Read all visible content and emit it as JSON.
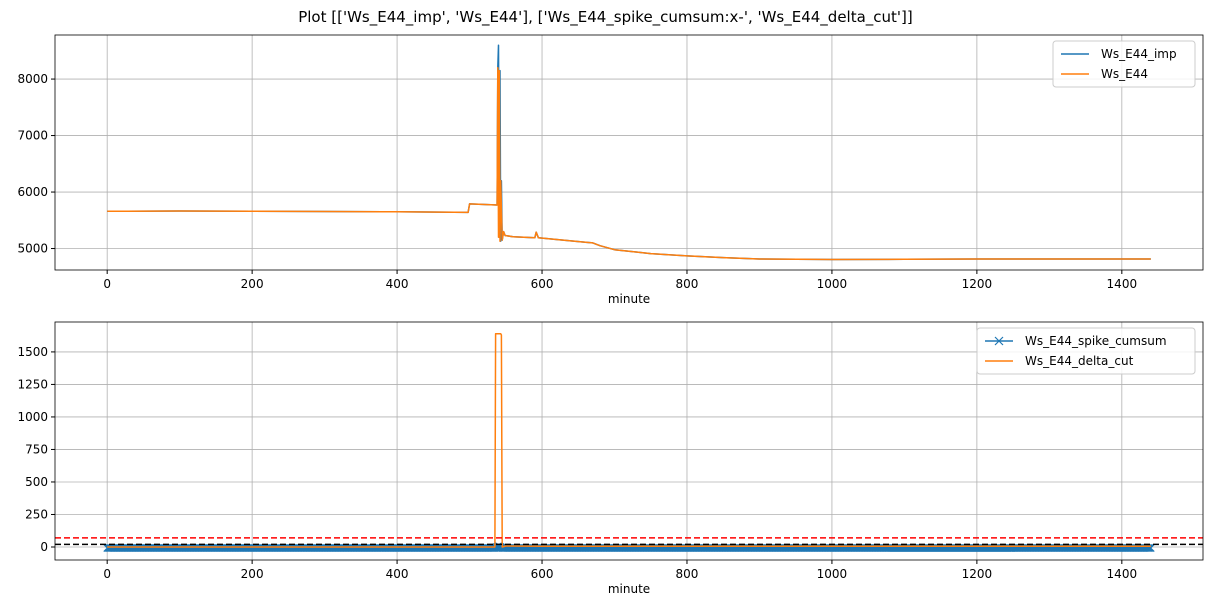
{
  "title": "Plot [['Ws_E44_imp', 'Ws_E44'], ['Ws_E44_spike_cumsum:x-', 'Ws_E44_delta_cut']]",
  "chart_data": [
    {
      "type": "line",
      "xlabel": "minute",
      "xlim": [
        -72,
        1512
      ],
      "ylim": [
        4620,
        8780
      ],
      "xticks": [
        0,
        200,
        400,
        600,
        800,
        1000,
        1200,
        1400
      ],
      "yticks": [
        5000,
        6000,
        7000,
        8000
      ],
      "grid": true,
      "legend": "top-right",
      "series": [
        {
          "name": "Ws_E44_imp",
          "color": "#1f77b4",
          "points": [
            [
              0,
              5660
            ],
            [
              100,
              5665
            ],
            [
              200,
              5660
            ],
            [
              300,
              5655
            ],
            [
              400,
              5650
            ],
            [
              498,
              5640
            ],
            [
              500,
              5790
            ],
            [
              538,
              5770
            ],
            [
              539,
              8200
            ],
            [
              540,
              8600
            ],
            [
              541,
              5200
            ],
            [
              542,
              8150
            ],
            [
              543,
              5130
            ],
            [
              544,
              6200
            ],
            [
              545,
              5150
            ],
            [
              547,
              5300
            ],
            [
              549,
              5230
            ],
            [
              560,
              5210
            ],
            [
              590,
              5190
            ],
            [
              592,
              5290
            ],
            [
              595,
              5190
            ],
            [
              620,
              5160
            ],
            [
              660,
              5110
            ],
            [
              670,
              5100
            ],
            [
              680,
              5050
            ],
            [
              700,
              4980
            ],
            [
              750,
              4910
            ],
            [
              800,
              4870
            ],
            [
              850,
              4840
            ],
            [
              900,
              4815
            ],
            [
              1000,
              4805
            ],
            [
              1100,
              4810
            ],
            [
              1200,
              4815
            ],
            [
              1300,
              4815
            ],
            [
              1440,
              4815
            ]
          ]
        },
        {
          "name": "Ws_E44",
          "color": "#ff7f0e",
          "points": [
            [
              0,
              5660
            ],
            [
              100,
              5665
            ],
            [
              200,
              5660
            ],
            [
              300,
              5655
            ],
            [
              400,
              5650
            ],
            [
              498,
              5640
            ],
            [
              500,
              5790
            ],
            [
              538,
              5770
            ],
            [
              539,
              8200
            ],
            [
              540,
              5200
            ],
            [
              541,
              8150
            ],
            [
              542,
              5130
            ],
            [
              543,
              6200
            ],
            [
              545,
              5150
            ],
            [
              547,
              5300
            ],
            [
              549,
              5230
            ],
            [
              560,
              5210
            ],
            [
              590,
              5190
            ],
            [
              592,
              5290
            ],
            [
              595,
              5190
            ],
            [
              620,
              5160
            ],
            [
              660,
              5110
            ],
            [
              670,
              5100
            ],
            [
              680,
              5050
            ],
            [
              700,
              4980
            ],
            [
              750,
              4910
            ],
            [
              800,
              4870
            ],
            [
              850,
              4840
            ],
            [
              900,
              4815
            ],
            [
              1000,
              4805
            ],
            [
              1100,
              4810
            ],
            [
              1200,
              4815
            ],
            [
              1300,
              4815
            ],
            [
              1440,
              4815
            ]
          ]
        }
      ]
    },
    {
      "type": "line",
      "xlabel": "minute",
      "xlim": [
        -72,
        1512
      ],
      "ylim": [
        -100,
        1730
      ],
      "xticks": [
        0,
        200,
        400,
        600,
        800,
        1000,
        1200,
        1400
      ],
      "yticks": [
        0,
        250,
        500,
        750,
        1000,
        1250,
        1500
      ],
      "grid": true,
      "legend": "top-right",
      "series": [
        {
          "name": "Ws_E44_spike_cumsum",
          "color": "#1f77b4",
          "marker": "x",
          "points": [
            [
              0,
              -8
            ],
            [
              535,
              -8
            ],
            [
              540,
              8
            ],
            [
              545,
              -8
            ],
            [
              1440,
              -8
            ]
          ]
        },
        {
          "name": "Ws_E44_delta_cut",
          "color": "#ff7f0e",
          "points": [
            [
              0,
              0
            ],
            [
              535,
              0
            ],
            [
              536,
              1640
            ],
            [
              543,
              1640
            ],
            [
              544,
              1630
            ],
            [
              545,
              0
            ],
            [
              550,
              8
            ],
            [
              600,
              5
            ],
            [
              700,
              5
            ],
            [
              1440,
              5
            ]
          ]
        }
      ],
      "hlines": [
        {
          "y": 70,
          "color": "#ff0000",
          "style": "dashed"
        },
        {
          "y": 20,
          "color": "#000000",
          "style": "dashed"
        }
      ]
    }
  ]
}
